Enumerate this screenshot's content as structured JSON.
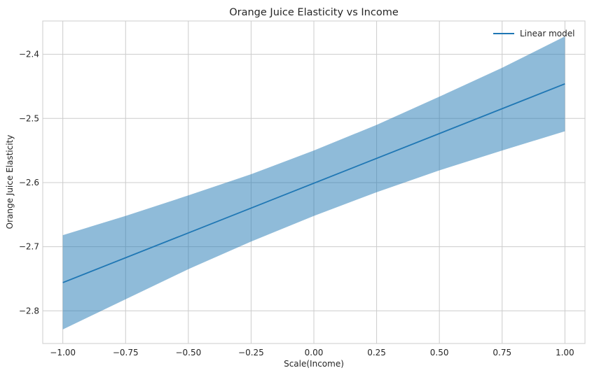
{
  "chart_data": {
    "type": "line",
    "title": "Orange Juice Elasticity vs Income",
    "xlabel": "Scale(Income)",
    "ylabel": "Orange Juice Elasticity",
    "xlim": [
      -1.08,
      1.08
    ],
    "ylim": [
      -2.851,
      -2.348
    ],
    "xticks": [
      -1.0,
      -0.75,
      -0.5,
      -0.25,
      0.0,
      0.25,
      0.5,
      0.75,
      1.0
    ],
    "xtick_labels": [
      "−1.00",
      "−0.75",
      "−0.50",
      "−0.25",
      "0.00",
      "0.25",
      "0.50",
      "0.75",
      "1.00"
    ],
    "yticks": [
      -2.8,
      -2.7,
      -2.6,
      -2.5,
      -2.4
    ],
    "ytick_labels": [
      "−2.8",
      "−2.7",
      "−2.6",
      "−2.5",
      "−2.4"
    ],
    "grid": true,
    "legend_position": "top-right",
    "series": [
      {
        "name": "Linear model",
        "color": "#1f77b4",
        "x": [
          -1.0,
          1.0
        ],
        "y": [
          -2.756,
          -2.446
        ]
      }
    ],
    "band": {
      "color": "#1f77b4",
      "opacity": 0.5,
      "x": [
        -1.0,
        -0.75,
        -0.5,
        -0.25,
        0.0,
        0.25,
        0.5,
        0.75,
        1.0
      ],
      "upper": [
        -2.682,
        -2.652,
        -2.62,
        -2.587,
        -2.55,
        -2.51,
        -2.466,
        -2.421,
        -2.372
      ],
      "lower": [
        -2.829,
        -2.782,
        -2.735,
        -2.692,
        -2.652,
        -2.615,
        -2.581,
        -2.55,
        -2.52
      ]
    }
  }
}
